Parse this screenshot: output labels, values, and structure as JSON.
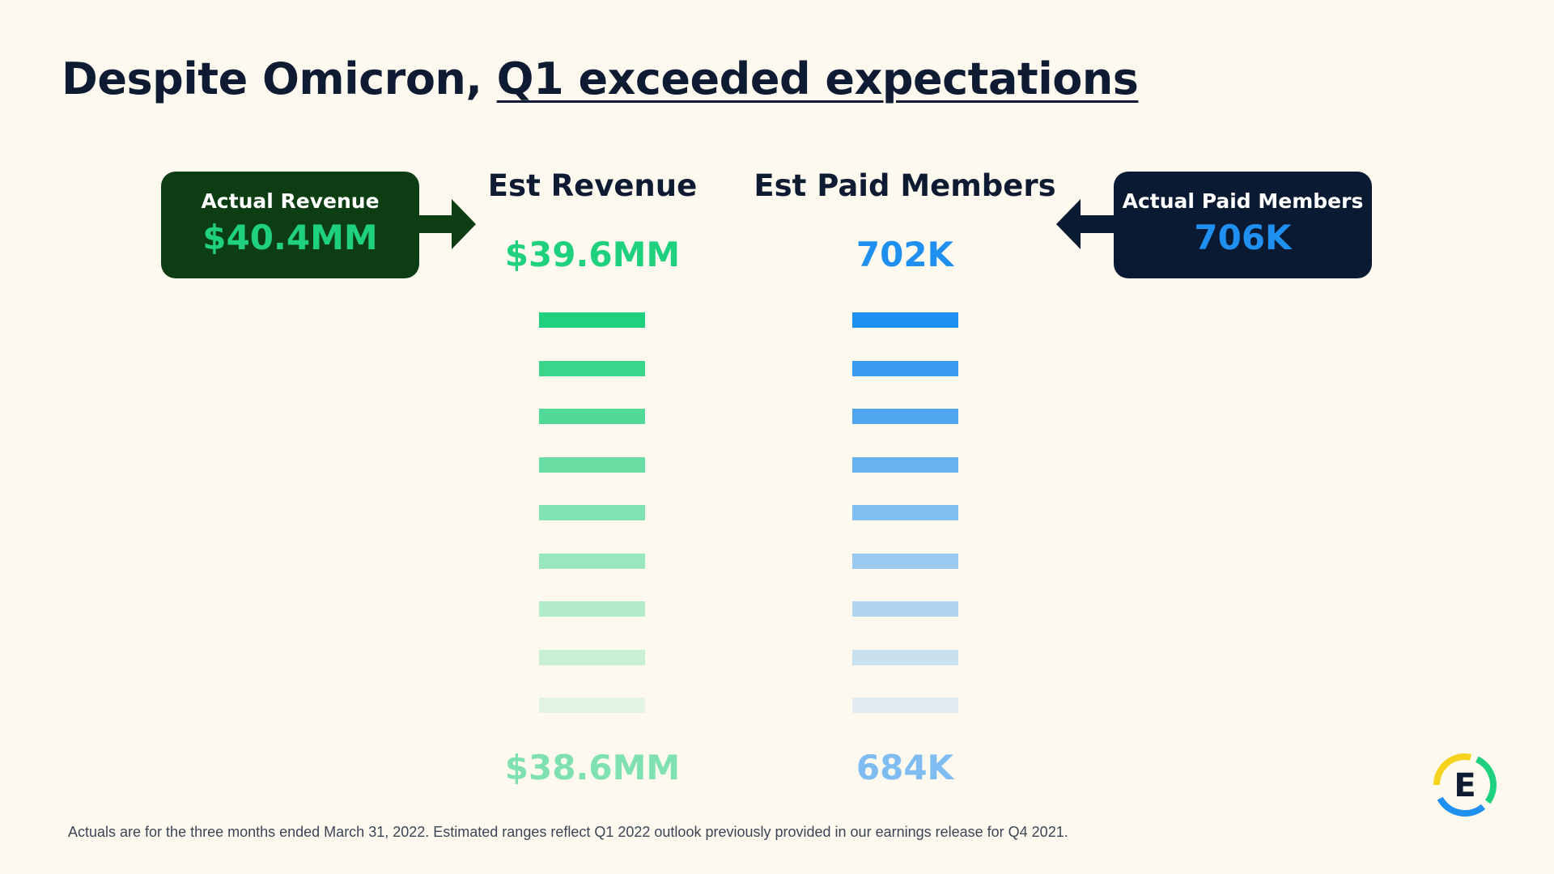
{
  "title": {
    "prefix": "Despite Omicron, ",
    "highlight": "Q1 exceeded expectations"
  },
  "actual_revenue": {
    "label": "Actual Revenue",
    "value": "$40.4MM"
  },
  "actual_paid_members": {
    "label": "Actual Paid Members",
    "value": "706K"
  },
  "est_revenue": {
    "heading": "Est Revenue",
    "high": "$39.6MM",
    "low": "$38.6MM",
    "bar_count": 9,
    "color": "#1fd07e"
  },
  "est_paid_members": {
    "heading": "Est Paid Members",
    "high": "702K",
    "low": "684K",
    "bar_count": 9,
    "color": "#1f8ff0"
  },
  "colors": {
    "navy": "#0f1b33",
    "dark_green": "#0d3d12",
    "dark_navy": "#0b1a33",
    "background": "#fdf9ef"
  },
  "footnote": "Actuals are for the three months ended March 31, 2022. Estimated ranges reflect Q1 2022 outlook previously provided in our earnings release for Q4 2021.",
  "logo": {
    "letter": "E",
    "icon": "company-logo-icon"
  }
}
